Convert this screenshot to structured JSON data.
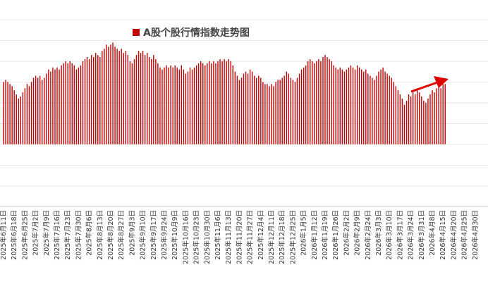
{
  "chart_data": {
    "type": "bar",
    "categories": [
      "2025年6月11日",
      null,
      null,
      null,
      null,
      "2025年6月18日",
      null,
      null,
      null,
      null,
      "2025年6月25日",
      null,
      null,
      null,
      null,
      "2025年7月2日",
      null,
      null,
      null,
      null,
      "2025年7月9日",
      null,
      null,
      null,
      null,
      "2025年7月16日",
      null,
      null,
      null,
      null,
      "2025年7月23日",
      null,
      null,
      null,
      null,
      "2025年7月30日",
      null,
      null,
      null,
      null,
      "2025年8月6日",
      null,
      null,
      null,
      null,
      "2025年8月13日",
      null,
      null,
      null,
      null,
      "2025年8月20日",
      null,
      null,
      null,
      null,
      "2025年8月27日",
      null,
      null,
      null,
      null,
      "2025年9月3日",
      null,
      null,
      null,
      null,
      "2025年9月10日",
      null,
      null,
      null,
      null,
      "2025年9月17日",
      null,
      null,
      null,
      null,
      "2025年9月24日",
      null,
      null,
      null,
      null,
      "2025年10月9日",
      null,
      null,
      null,
      null,
      "2025年10月16日",
      null,
      null,
      null,
      null,
      "2025年10月23日",
      null,
      null,
      null,
      null,
      "2025年10月30日",
      null,
      null,
      null,
      null,
      "2025年11月6日",
      null,
      null,
      null,
      null,
      "2025年11月13日",
      null,
      null,
      null,
      null,
      "2025年11月20日",
      null,
      null,
      null,
      null,
      "2025年11月27日",
      null,
      null,
      null,
      null,
      "2025年12月4日",
      null,
      null,
      null,
      null,
      "2025年12月11日",
      null,
      null,
      null,
      null,
      "2025年12月18日",
      null,
      null,
      null,
      null,
      "2025年12月25日",
      null,
      null,
      null,
      null,
      "2026年1月5日",
      null,
      null,
      null,
      null,
      "2026年1月12日",
      null,
      null,
      null,
      null,
      "2026年1月19日",
      null,
      null,
      null,
      null,
      "2026年1月26日",
      null,
      null,
      null,
      null,
      "2026年2月2日",
      null,
      null,
      null,
      null,
      "2026年2月9日",
      null,
      null,
      null,
      null,
      "2026年2月24日",
      null,
      null,
      null,
      null,
      "2026年3月3日",
      null,
      null,
      null,
      null,
      "2026年3月10日",
      null,
      null,
      null,
      null,
      "2026年3月17日",
      null,
      null,
      null,
      null,
      "2026年3月24日",
      null,
      null,
      null,
      null,
      "2026年3月31日",
      null,
      null,
      null,
      null,
      "2026年4月8日",
      null,
      null,
      null,
      null,
      "2026年4月15日",
      null,
      null,
      null,
      null,
      "2026年4月20日",
      null,
      null,
      null,
      null,
      "2026年4月25日",
      null,
      null,
      null,
      null,
      "2026年4月30日",
      null,
      null,
      null,
      null
    ],
    "series": [
      {
        "name": "A股个股行情指数走势图",
        "color": "#c00000",
        "values": [
          30,
          31,
          30,
          29,
          28,
          26,
          24,
          22,
          23,
          25,
          27,
          29,
          28,
          30,
          32,
          33,
          32,
          33,
          31,
          32,
          34,
          36,
          35,
          37,
          36,
          37,
          36,
          38,
          39,
          40,
          39,
          40,
          39,
          38,
          36,
          37,
          38,
          40,
          41,
          42,
          41,
          43,
          42,
          44,
          43,
          42,
          45,
          46,
          48,
          47,
          48,
          49,
          47,
          46,
          45,
          46,
          44,
          45,
          43,
          40,
          39,
          41,
          43,
          45,
          44,
          45,
          43,
          44,
          42,
          41,
          43,
          41,
          39,
          37,
          36,
          37,
          38,
          37,
          38,
          37,
          38,
          37,
          36,
          38,
          36,
          34,
          35,
          37,
          36,
          37,
          38,
          39,
          40,
          39,
          38,
          39,
          40,
          39,
          40,
          39,
          40,
          41,
          40,
          41,
          40,
          41,
          40,
          38,
          35,
          33,
          31,
          32,
          34,
          35,
          34,
          36,
          35,
          33,
          32,
          33,
          32,
          30,
          29,
          29,
          28,
          29,
          28,
          30,
          31,
          31,
          32,
          33,
          35,
          34,
          32,
          31,
          30,
          32,
          34,
          36,
          37,
          38,
          40,
          41,
          40,
          39,
          40,
          41,
          40,
          42,
          43,
          42,
          41,
          40,
          38,
          37,
          36,
          37,
          36,
          35,
          36,
          37,
          38,
          37,
          36,
          38,
          37,
          36,
          35,
          36,
          34,
          33,
          32,
          31,
          33,
          35,
          36,
          37,
          35,
          34,
          33,
          32,
          30,
          28,
          26,
          24,
          22,
          19,
          21,
          24,
          23,
          25,
          24,
          26,
          25,
          23,
          21,
          20,
          22,
          24,
          26,
          25,
          27,
          28,
          27,
          29,
          29,
          null,
          null,
          null,
          null,
          null,
          null,
          null,
          null,
          null,
          null,
          null,
          null,
          null,
          null,
          null,
          null,
          null,
          null
        ]
      }
    ],
    "ylim": [
      -30,
      60
    ],
    "legend": "top"
  }
}
